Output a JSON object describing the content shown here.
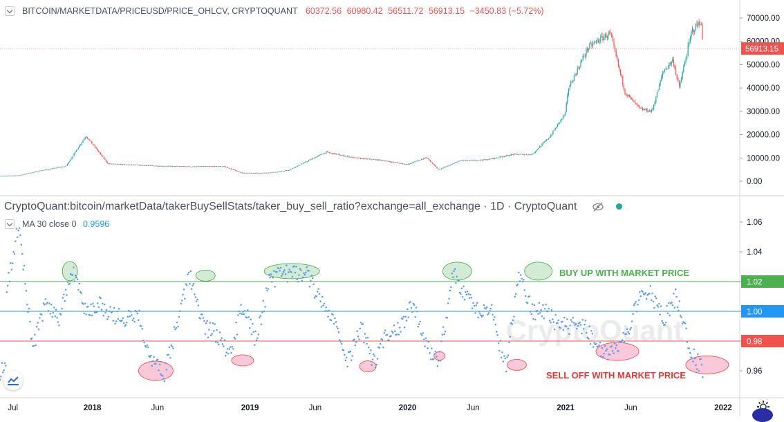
{
  "top_pane": {
    "symbol": "BITCOIN/MARKETDATA/PRICEUSD/PRICE_OHLCV, CRYPTOQUANT",
    "open": "60372.56",
    "high": "60980.42",
    "low": "56511.72",
    "close": "56913.15",
    "change": "−3450.83 (−5.72%)",
    "price_label": "56913.15"
  },
  "bottom_pane": {
    "title": "CryptoQuant:bitcoin/marketData/takerBuySellStats/taker_buy_sell_ratio?exchange=all_exchange · 1D · CryptoQuant",
    "ma_legend": "MA 30 close 0",
    "ma_value": "0.9596",
    "watermark": "CryptoQuant",
    "annotation_buy": "BUY UP WITH MARKET PRICE",
    "annotation_sell": "SELL OFF WITH MARKET PRICE",
    "level_labels": [
      "1.02",
      "1.00",
      "0.98"
    ]
  },
  "colors": {
    "up_candle": "#26a69a",
    "down_candle": "#ef5350",
    "price_badge": "#ef5350",
    "ratio_dots": "#5b9be8",
    "line_green": "#4caf50",
    "line_blue": "#2196f3",
    "line_red": "#ef5350",
    "buy_text": "#4caf50",
    "sell_text": "#e53935",
    "ellipse_green_fill": "#c8e6c9",
    "ellipse_red_fill": "#f8bbd0"
  },
  "chart_data": [
    {
      "type": "line",
      "title": "BITCOIN/MARKETDATA/PRICEUSD/PRICE_OHLCV, CRYPTOQUANT",
      "series_kind": "candlestick",
      "y_ticks": [
        "0.00",
        "10000.00",
        "20000.00",
        "30000.00",
        "40000.00",
        "50000.00",
        "60000.00",
        "70000.00"
      ],
      "ylim": [
        -2000,
        73000
      ],
      "x": [
        "2017-06-01",
        "2017-07-15",
        "2017-09-01",
        "2017-11-01",
        "2017-12-17",
        "2018-02-06",
        "2018-04-01",
        "2018-06-15",
        "2018-08-15",
        "2018-11-01",
        "2018-12-15",
        "2019-02-15",
        "2019-04-01",
        "2019-06-26",
        "2019-09-01",
        "2019-11-01",
        "2020-01-01",
        "2020-02-13",
        "2020-03-13",
        "2020-05-01",
        "2020-07-01",
        "2020-09-01",
        "2020-10-15",
        "2020-11-25",
        "2020-12-31",
        "2021-01-08",
        "2021-02-21",
        "2021-03-14",
        "2021-04-14",
        "2021-05-19",
        "2021-06-22",
        "2021-07-20",
        "2021-08-15",
        "2021-09-07",
        "2021-09-21",
        "2021-10-20",
        "2021-11-10",
        "2021-11-16"
      ],
      "values": [
        2300,
        2500,
        4500,
        6500,
        19500,
        7500,
        7000,
        6500,
        6300,
        6400,
        3500,
        3600,
        4800,
        12500,
        10000,
        9000,
        7200,
        10200,
        4900,
        8800,
        9200,
        11500,
        11500,
        19000,
        29000,
        40000,
        57000,
        60000,
        63500,
        38000,
        31000,
        30000,
        47000,
        52000,
        40000,
        64000,
        69000,
        56913
      ]
    },
    {
      "type": "scatter",
      "title": "CryptoQuant:bitcoin/marketData/takerBuySellStats/taker_buy_sell_ratio?exchange=all_exchange · 1D · CryptoQuant",
      "series": [
        {
          "name": "MA 30 close 0",
          "last_value": 0.9596
        }
      ],
      "x": [
        "2017-06",
        "2017-07",
        "2017-08",
        "2017-09",
        "2017-10",
        "2017-11",
        "2017-12",
        "2018-01",
        "2018-02",
        "2018-03",
        "2018-04",
        "2018-05",
        "2018-06",
        "2018-07",
        "2018-08",
        "2018-09",
        "2018-10",
        "2018-11",
        "2018-12",
        "2019-01",
        "2019-02",
        "2019-03",
        "2019-04",
        "2019-05",
        "2019-06",
        "2019-07",
        "2019-08",
        "2019-09",
        "2019-10",
        "2019-11",
        "2019-12",
        "2020-01",
        "2020-02",
        "2020-03",
        "2020-04",
        "2020-05",
        "2020-06",
        "2020-07",
        "2020-08",
        "2020-09",
        "2020-10",
        "2020-11",
        "2020-12",
        "2021-01",
        "2021-02",
        "2021-03",
        "2021-04",
        "2021-05",
        "2021-06",
        "2021-07",
        "2021-08",
        "2021-09",
        "2021-10",
        "2021-11"
      ],
      "values": [
        1.01,
        1.06,
        0.975,
        1.005,
        0.995,
        1.03,
        1.0,
        1.005,
        0.998,
        0.995,
        1.0,
        0.97,
        0.955,
        0.99,
        1.025,
        0.99,
        0.985,
        0.97,
        1.005,
        0.98,
        1.02,
        1.025,
        1.025,
        1.025,
        1.005,
        0.995,
        0.965,
        0.99,
        0.965,
        0.985,
        0.99,
        1.005,
        0.975,
        0.968,
        1.025,
        1.01,
        1.0,
        1.0,
        0.962,
        1.025,
        1.0,
        1.0,
        0.99,
        0.99,
        0.99,
        0.975,
        0.97,
        0.98,
        1.005,
        1.015,
        0.995,
        1.01,
        0.975,
        0.96
      ],
      "y_ticks": [
        "0.96",
        "0.98",
        "1.00",
        "1.02",
        "1.04",
        "1.06"
      ],
      "ylim": [
        0.946,
        1.07
      ],
      "hlines": [
        1.02,
        1.0,
        0.98
      ]
    }
  ],
  "x_axis_labels": [
    "Jul",
    "2018",
    "Jun",
    "2019",
    "Jun",
    "2020",
    "Jun",
    "2021",
    "Jun",
    "2022"
  ],
  "x_axis_dates": [
    "2017-07-01",
    "2018-01-01",
    "2018-06-01",
    "2019-01-01",
    "2019-06-01",
    "2020-01-01",
    "2020-06-01",
    "2021-01-01",
    "2021-06-01",
    "2022-01-01"
  ],
  "icons": [
    "collapse-icon",
    "eye-off-icon",
    "status-dot-icon",
    "tradingview-logo-icon",
    "gear-icon"
  ]
}
